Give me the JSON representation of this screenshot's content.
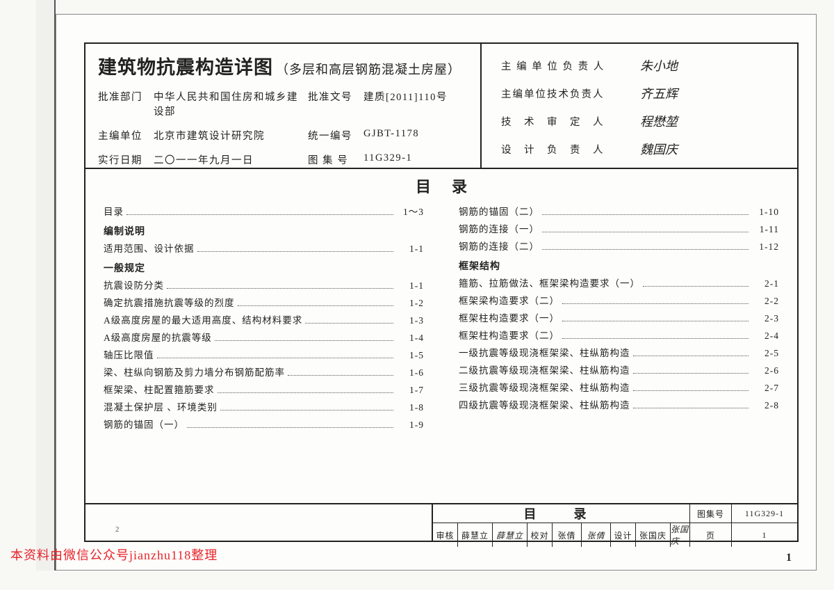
{
  "title_block": {
    "main_title": "建筑物抗震构造详图",
    "sub_title": "（多层和高层钢筋混凝土房屋）",
    "rows": [
      {
        "l1": "批准部门",
        "v1": "中华人民共和国住房和城乡建设部",
        "l2": "批准文号",
        "v2": "建质[2011]110号"
      },
      {
        "l1": "主编单位",
        "v1": "北京市建筑设计研究院",
        "l2": "统一编号",
        "v2": "GJBT-1178"
      },
      {
        "l1": "实行日期",
        "v1": "二〇一一年九月一日",
        "l2": "图 集 号",
        "v2": "11G329-1"
      }
    ],
    "right_rows": [
      {
        "label": "主 编 单 位 负 责 人",
        "sig": "朱小地"
      },
      {
        "label": "主编单位技术负责人",
        "sig": "齐五辉"
      },
      {
        "label": "技　术　审　定　人",
        "sig": "程懋堃"
      },
      {
        "label": "设　计　负　责　人",
        "sig": "魏国庆"
      }
    ]
  },
  "toc": {
    "title": "目录",
    "left_col": [
      {
        "type": "line",
        "name": "目录",
        "page": "1～3"
      },
      {
        "type": "heading",
        "name": "编制说明"
      },
      {
        "type": "line",
        "name": "适用范围、设计依据",
        "page": "1-1"
      },
      {
        "type": "heading",
        "name": "一般规定"
      },
      {
        "type": "line",
        "name": "抗震设防分类",
        "page": "1-1"
      },
      {
        "type": "line",
        "name": "确定抗震措施抗震等级的烈度",
        "page": "1-2"
      },
      {
        "type": "line",
        "name": "A级高度房屋的最大适用高度、结构材料要求",
        "page": "1-3"
      },
      {
        "type": "line",
        "name": "A级高度房屋的抗震等级",
        "page": "1-4"
      },
      {
        "type": "line",
        "name": "轴压比限值",
        "page": "1-5"
      },
      {
        "type": "line",
        "name": "梁、柱纵向钢筋及剪力墙分布钢筋配筋率",
        "page": "1-6"
      },
      {
        "type": "line",
        "name": "框架梁、柱配置箍筋要求",
        "page": "1-7"
      },
      {
        "type": "line",
        "name": "混凝土保护层 、环境类别",
        "page": "1-8"
      },
      {
        "type": "line",
        "name": "钢筋的锚固（一）",
        "page": "1-9"
      }
    ],
    "right_col": [
      {
        "type": "line",
        "name": "钢筋的锚固（二）",
        "page": "1-10"
      },
      {
        "type": "line",
        "name": "钢筋的连接（一）",
        "page": "1-11"
      },
      {
        "type": "line",
        "name": "钢筋的连接（二）",
        "page": "1-12"
      },
      {
        "type": "heading",
        "name": "框架结构"
      },
      {
        "type": "line",
        "name": "箍筋、拉筋做法、框架梁构造要求（一）",
        "page": "2-1"
      },
      {
        "type": "line",
        "name": "框架梁构造要求（二）",
        "page": "2-2"
      },
      {
        "type": "line",
        "name": "框架柱构造要求（一）",
        "page": "2-3"
      },
      {
        "type": "line",
        "name": "框架柱构造要求（二）",
        "page": "2-4"
      },
      {
        "type": "line",
        "name": "一级抗震等级现浇框架梁、柱纵筋构造",
        "page": "2-5"
      },
      {
        "type": "line",
        "name": "二级抗震等级现浇框架梁、柱纵筋构造",
        "page": "2-6"
      },
      {
        "type": "line",
        "name": "三级抗震等级现浇框架梁、柱纵筋构造",
        "page": "2-7"
      },
      {
        "type": "line",
        "name": "四级抗震等级现浇框架梁、柱纵筋构造",
        "page": "2-8"
      }
    ]
  },
  "footer": {
    "top": {
      "toc": "目　录",
      "set_label": "图集号",
      "set_val": "11G329-1"
    },
    "bot": {
      "c1": "审核",
      "c2": "薛慧立",
      "c3": "薛慧立",
      "c4": "校对",
      "c5": "张倩",
      "c6": "张倩",
      "c7": "设计",
      "c8": "张国庆",
      "c9": "张国庆",
      "page_label": "页",
      "page_val": "1"
    }
  },
  "watermark": "本资料由微信公众号jianzhu118整理",
  "tinylabel": "2",
  "page_number": "1"
}
